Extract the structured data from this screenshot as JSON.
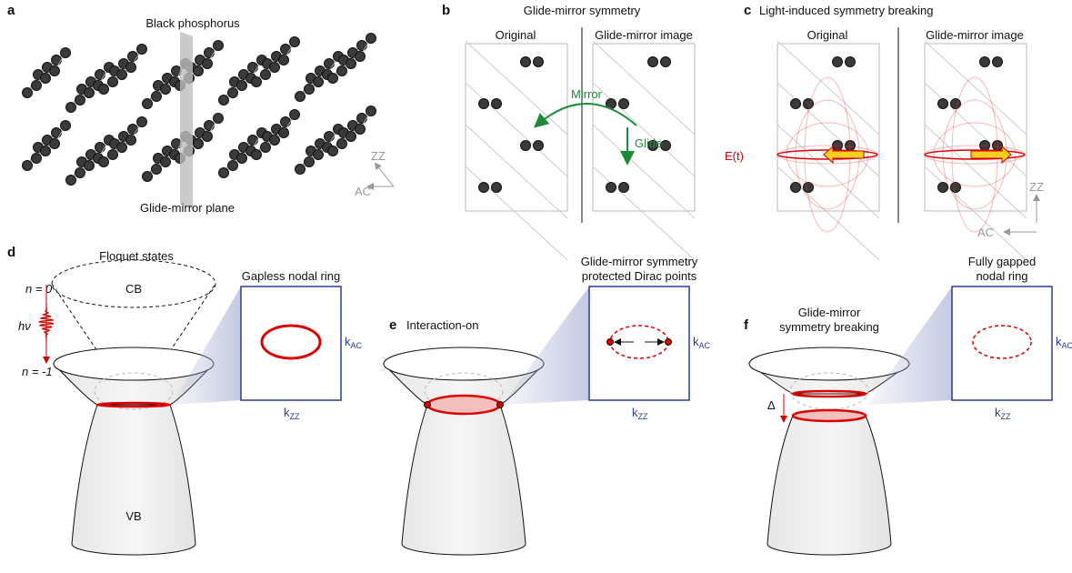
{
  "panels": {
    "a": {
      "label": "a",
      "title": "Black phosphorus",
      "plane": "Glide-mirror plane",
      "zz": "ZZ",
      "ac": "AC"
    },
    "b": {
      "label": "b",
      "title": "Glide-mirror symmetry",
      "left": "Original",
      "right": "Glide-mirror image",
      "mirror": "Mirror",
      "glide": "Glide"
    },
    "c": {
      "label": "c",
      "title": "Light-induced symmetry breaking",
      "left": "Original",
      "right": "Glide-mirror image",
      "field": "E(t)",
      "zz": "ZZ",
      "ac": "AC"
    },
    "d": {
      "label": "d",
      "title": "Floquet states",
      "n0": "n = 0",
      "cb": "CB",
      "hv": "hν",
      "n1": "n = -1",
      "vb": "VB",
      "inset": [
        "Gapless nodal ring"
      ],
      "k": "k",
      "k_ac": "AC",
      "k_zz": "ZZ"
    },
    "e": {
      "label": "e",
      "title": "Interaction-on",
      "inset": [
        "Glide-mirror symmetry",
        "protected Dirac points"
      ],
      "k": "k",
      "k_ac": "AC",
      "k_zz": "ZZ"
    },
    "f": {
      "label": "f",
      "title": [
        "Glide-mirror",
        "symmetry breaking"
      ],
      "gap": "Δ",
      "inset": [
        "Fully gapped",
        "nodal ring"
      ],
      "k": "k",
      "k_ac": "AC",
      "k_zz": "ZZ"
    }
  }
}
